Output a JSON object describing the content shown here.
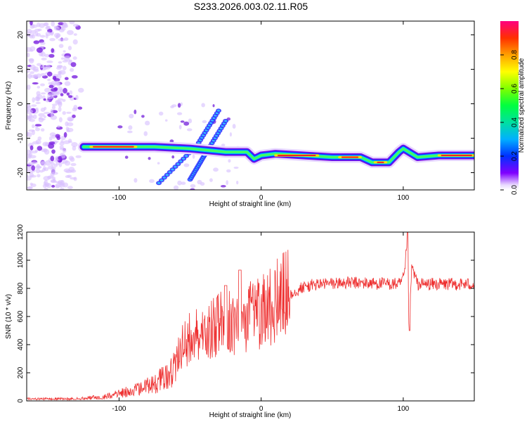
{
  "figure_title": "S233.2026.003.02.11.R05",
  "chart_data": [
    {
      "type": "heatmap",
      "xlabel": "Height of straight line (km)",
      "ylabel": "Frequency (Hz)",
      "xlim": [
        -165,
        150
      ],
      "ylim": [
        -25,
        24
      ],
      "xticks": [
        "-100",
        "0",
        "100"
      ],
      "yticks": [
        "20",
        "10",
        "0",
        "-10",
        "-20"
      ],
      "colorbar": {
        "label": "Normalized spectral amplitude",
        "range": [
          0,
          1
        ],
        "ticks": [
          "0.0",
          "0.2",
          "0.4",
          "0.6",
          "0.8"
        ]
      },
      "features": [
        {
          "kind": "noise-cloud",
          "x": [
            -165,
            -125
          ],
          "y": [
            -25,
            24
          ]
        },
        {
          "kind": "main-trace",
          "description_points": [
            [
              -125,
              -12.5
            ],
            [
              -90,
              -12.5
            ],
            [
              -75,
              -12.5
            ],
            [
              -50,
              -13
            ],
            [
              -25,
              -14
            ],
            [
              -10,
              -14
            ],
            [
              -5,
              -16
            ],
            [
              0,
              -15
            ],
            [
              10,
              -14.5
            ],
            [
              30,
              -15
            ],
            [
              50,
              -15.5
            ],
            [
              70,
              -15.5
            ],
            [
              78,
              -17
            ],
            [
              90,
              -17
            ],
            [
              97,
              -14
            ],
            [
              100,
              -13
            ],
            [
              110,
              -15.5
            ],
            [
              125,
              -15
            ],
            [
              150,
              -15
            ]
          ]
        },
        {
          "kind": "diagonal-arm",
          "points": [
            [
              -72,
              -23
            ],
            [
              -45,
              -12
            ],
            [
              -30,
              -2
            ]
          ]
        },
        {
          "kind": "diagonal-arm",
          "points": [
            [
              -50,
              -22
            ],
            [
              -40,
              -15
            ],
            [
              -25,
              -5
            ]
          ]
        }
      ]
    },
    {
      "type": "line",
      "xlabel": "Height of straight line (km)",
      "ylabel": "SNR (10 * v/v)",
      "xlim": [
        -165,
        150
      ],
      "ylim": [
        0,
        1200
      ],
      "xticks": [
        "-100",
        "0",
        "100"
      ],
      "yticks": [
        "0",
        "200",
        "400",
        "600",
        "800",
        "1000",
        "1200"
      ],
      "series": [
        {
          "name": "SNR",
          "color": "#ee3030",
          "envelope": [
            [
              -165,
              20
            ],
            [
              -130,
              20
            ],
            [
              -110,
              40
            ],
            [
              -90,
              100
            ],
            [
              -75,
              160
            ],
            [
              -60,
              300
            ],
            [
              -50,
              430
            ],
            [
              -40,
              470
            ],
            [
              -30,
              520
            ],
            [
              -20,
              530
            ],
            [
              -10,
              560
            ],
            [
              0,
              600
            ],
            [
              10,
              680
            ],
            [
              20,
              760
            ],
            [
              30,
              810
            ],
            [
              40,
              830
            ],
            [
              60,
              840
            ],
            [
              80,
              835
            ],
            [
              98,
              830
            ],
            [
              101,
              900
            ],
            [
              103,
              1200
            ],
            [
              104,
              500
            ],
            [
              106,
              960
            ],
            [
              110,
              830
            ],
            [
              130,
              830
            ],
            [
              150,
              830
            ]
          ]
        }
      ]
    }
  ]
}
